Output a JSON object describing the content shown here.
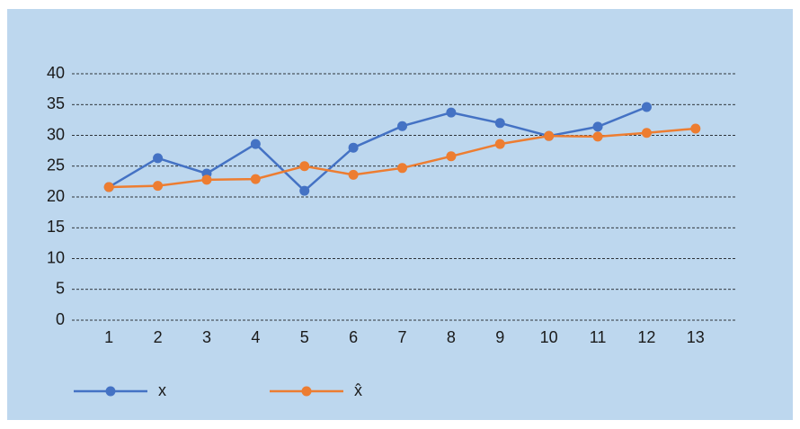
{
  "chart_data": {
    "type": "line",
    "categories": [
      "1",
      "2",
      "3",
      "4",
      "5",
      "6",
      "7",
      "8",
      "9",
      "10",
      "11",
      "12",
      "13"
    ],
    "series": [
      {
        "name": "x",
        "color": "#4472c4",
        "values": [
          21.6,
          26.3,
          23.8,
          28.6,
          21.0,
          28.0,
          31.5,
          33.7,
          32.0,
          29.9,
          31.4,
          34.6,
          null
        ]
      },
      {
        "name": "x̂",
        "color": "#ed7d31",
        "values": [
          21.6,
          21.8,
          22.8,
          22.9,
          25.0,
          23.6,
          24.7,
          26.6,
          28.6,
          29.9,
          29.8,
          30.4,
          31.1
        ]
      }
    ],
    "ylim": [
      0,
      40
    ],
    "yticks": [
      0,
      5,
      10,
      15,
      20,
      25,
      30,
      35,
      40
    ],
    "grid": true,
    "legend": "bottom"
  }
}
